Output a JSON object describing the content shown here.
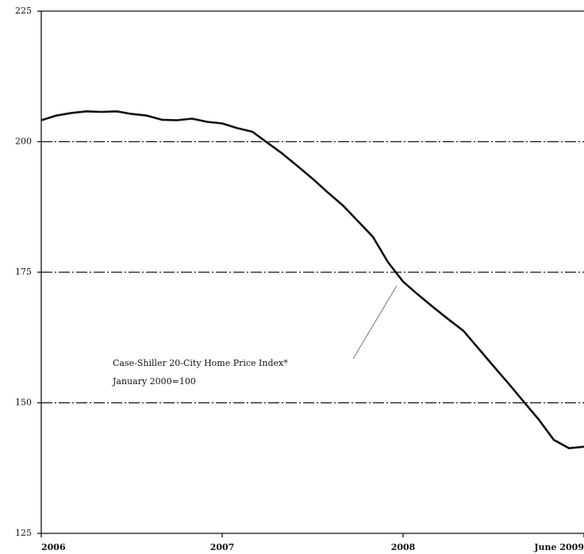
{
  "chart_data": {
    "type": "line",
    "annotation": [
      "Case-Shiller 20-City Home Price Index*",
      "January 2000=100"
    ],
    "x": [
      2006.0,
      2006.083,
      2006.167,
      2006.25,
      2006.333,
      2006.417,
      2006.5,
      2006.583,
      2006.667,
      2006.75,
      2006.833,
      2006.917,
      2007.0,
      2007.083,
      2007.167,
      2007.25,
      2007.333,
      2007.417,
      2007.5,
      2007.583,
      2007.667,
      2007.75,
      2007.833,
      2007.917,
      2008.0,
      2008.083,
      2008.167,
      2008.25,
      2008.333,
      2008.417,
      2008.5,
      2008.583,
      2008.667,
      2008.75,
      2008.833,
      2008.917,
      2009.0
    ],
    "series": [
      {
        "name": "Case-Shiller 20-City Home Price Index",
        "color": "#111111",
        "values": [
          204.1,
          205.0,
          205.5,
          205.8,
          205.7,
          205.8,
          205.3,
          205.0,
          204.2,
          204.1,
          204.4,
          203.8,
          203.5,
          202.6,
          201.9,
          199.8,
          197.7,
          195.3,
          192.9,
          190.3,
          187.8,
          184.8,
          181.8,
          176.9,
          173.2,
          170.7,
          168.3,
          166.0,
          163.8,
          160.4,
          157.0,
          153.7,
          150.2,
          146.8,
          142.9,
          141.3,
          141.6
        ]
      }
    ],
    "xlim": [
      2006,
      2009
    ],
    "xticks": [
      {
        "value": 2006,
        "label": "2006"
      },
      {
        "value": 2007,
        "label": "2007"
      },
      {
        "value": 2008,
        "label": "2008"
      },
      {
        "value": 2009,
        "label": "June 2009"
      }
    ],
    "ylim": [
      125,
      225
    ],
    "yticks": [
      125,
      150,
      175,
      200,
      225
    ],
    "grid": true
  }
}
